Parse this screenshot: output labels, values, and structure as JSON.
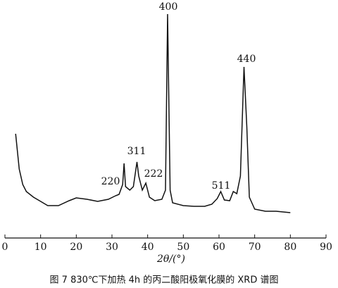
{
  "chart_data": {
    "type": "line",
    "x_label": "2θ/(°)",
    "caption": "图 7      830℃下加热 4h 的丙二酸阳极氧化膜的 XRD 谱图",
    "x": [
      3,
      4,
      5,
      6,
      8,
      10,
      12,
      15,
      18,
      20,
      23,
      26,
      29,
      31,
      32,
      33,
      33.4,
      33.8,
      35,
      36,
      37,
      37.5,
      38.5,
      39.5,
      40.5,
      42,
      44,
      45,
      45.6,
      46.3,
      47,
      50,
      53,
      56,
      58,
      59.5,
      60.5,
      61.5,
      63,
      64,
      65,
      66,
      67,
      67.8,
      68.5,
      70,
      73,
      76,
      80
    ],
    "values": [
      148,
      98,
      76,
      66,
      58,
      52,
      46,
      46,
      53,
      57,
      55,
      52,
      55,
      60,
      62,
      76,
      106,
      73,
      68,
      73,
      108,
      88,
      68,
      78,
      58,
      53,
      55,
      68,
      318,
      68,
      50,
      46,
      45,
      45,
      48,
      56,
      66,
      54,
      53,
      66,
      63,
      88,
      243,
      158,
      58,
      41,
      38,
      38,
      36
    ],
    "color": "#111111",
    "xlim": [
      0,
      90
    ],
    "xticks": [
      0,
      10,
      20,
      30,
      40,
      50,
      60,
      70,
      80,
      90
    ],
    "annotations": [
      "400",
      "440",
      "311",
      "220",
      "222",
      "511"
    ]
  }
}
